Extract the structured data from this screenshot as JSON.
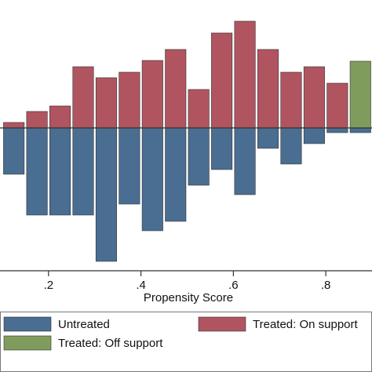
{
  "chart_data": {
    "type": "histogram",
    "x_label": "Propensity Score",
    "bins": [
      0.1,
      0.15,
      0.2,
      0.25,
      0.3,
      0.35,
      0.4,
      0.45,
      0.5,
      0.55,
      0.6,
      0.65,
      0.7,
      0.75,
      0.8,
      0.85,
      0.9
    ],
    "series": [
      {
        "name": "Untreated",
        "color": "#4a6d92",
        "values": [
          -1.18,
          -2.22,
          -2.22,
          -2.22,
          -3.4,
          -1.94,
          -2.62,
          -2.38,
          -1.46,
          -1.06,
          -1.7,
          -0.52,
          -0.92,
          -0.4,
          -0.12,
          -0.12
        ]
      },
      {
        "name": "Treated: On support",
        "color": "#b05560",
        "values": [
          0.14,
          0.42,
          0.56,
          1.56,
          1.28,
          1.42,
          1.72,
          2.0,
          0.98,
          2.42,
          2.72,
          2.0,
          1.42,
          1.56,
          1.14,
          null
        ]
      },
      {
        "name": "Treated: Off support",
        "color": "#7f9c5c",
        "values": [
          null,
          null,
          null,
          null,
          null,
          null,
          null,
          null,
          null,
          null,
          null,
          null,
          null,
          null,
          null,
          1.7
        ]
      }
    ],
    "xlim": [
      0.095,
      0.9
    ],
    "xticks": [
      {
        "value": 0.2,
        "label": ".2"
      },
      {
        "value": 0.4,
        "label": ".4"
      },
      {
        "value": 0.6,
        "label": ".6"
      },
      {
        "value": 0.8,
        "label": ".8"
      }
    ],
    "ylim": [
      -3.64,
      3.26
    ]
  }
}
